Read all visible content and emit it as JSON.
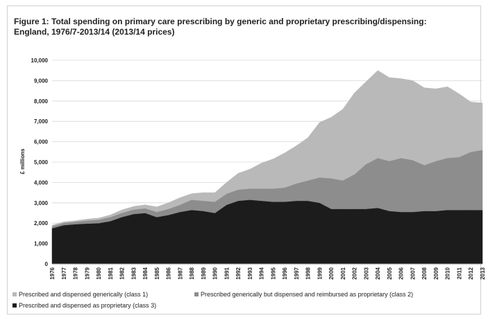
{
  "figure": {
    "title_line1": "Figure 1: Total spending on primary care prescribing by generic and proprietary prescribing/dispensing:",
    "title_line2": "England, 1976/7-2013/14 (2013/14 prices)"
  },
  "chart_data": {
    "type": "area",
    "stacked": true,
    "title": "Figure 1: Total spending on primary care prescribing by generic and proprietary prescribing/dispensing: England, 1976/7-2013/14 (2013/14 prices)",
    "xlabel": "",
    "ylabel": "£ millions",
    "ylim": [
      0,
      10000
    ],
    "yticks": [
      "0",
      "1,000",
      "2,000",
      "3,000",
      "4,000",
      "5,000",
      "6,000",
      "7,000",
      "8,000",
      "9,000",
      "10,000"
    ],
    "categories": [
      "1976",
      "1977",
      "1978",
      "1979",
      "1980",
      "1981",
      "1982",
      "1983",
      "1984",
      "1985",
      "1986",
      "1987",
      "1988",
      "1989",
      "1990",
      "1991",
      "1992",
      "1993",
      "1994",
      "1995",
      "1996",
      "1997",
      "1998",
      "1999",
      "2000",
      "2001",
      "2002",
      "2003",
      "2004",
      "2005",
      "2006",
      "2007",
      "2008",
      "2009",
      "2010",
      "2011",
      "2012",
      "2013"
    ],
    "grid": true,
    "legend_position": "bottom",
    "series": [
      {
        "name": "Prescribed and dispensed as proprietary (class 3)",
        "color": "#1c1c1c",
        "values": [
          1750,
          1900,
          1950,
          1980,
          2000,
          2100,
          2300,
          2450,
          2500,
          2300,
          2400,
          2550,
          2650,
          2600,
          2500,
          2900,
          3100,
          3150,
          3100,
          3050,
          3050,
          3100,
          3100,
          3000,
          2700,
          2700,
          2700,
          2700,
          2750,
          2600,
          2550,
          2550,
          2600,
          2600,
          2650,
          2650,
          2650,
          2650
        ]
      },
      {
        "name": "Prescribed generically but dispensed and reimbursed as proprietary (class 2)",
        "color": "#8d8d8d",
        "values": [
          100,
          110,
          120,
          150,
          170,
          200,
          200,
          220,
          230,
          250,
          300,
          350,
          500,
          500,
          550,
          550,
          550,
          550,
          600,
          650,
          700,
          850,
          1000,
          1250,
          1500,
          1400,
          1700,
          2200,
          2450,
          2450,
          2650,
          2550,
          2250,
          2450,
          2550,
          2600,
          2850,
          2950
        ]
      },
      {
        "name": "Prescribed and dispensed generically (class 1)",
        "color": "#b9b9b9",
        "values": [
          50,
          50,
          50,
          70,
          80,
          100,
          150,
          150,
          170,
          250,
          300,
          350,
          300,
          400,
          450,
          550,
          800,
          950,
          1250,
          1450,
          1700,
          1850,
          2100,
          2700,
          3000,
          3500,
          4000,
          4050,
          4300,
          4100,
          3900,
          3900,
          3800,
          3550,
          3500,
          3100,
          2450,
          2300
        ]
      }
    ],
    "legend_order": [
      "Prescribed and dispensed generically (class 1)",
      "Prescribed generically but dispensed and reimbursed as proprietary (class 2)",
      "Prescribed and dispensed as proprietary (class 3)"
    ]
  }
}
